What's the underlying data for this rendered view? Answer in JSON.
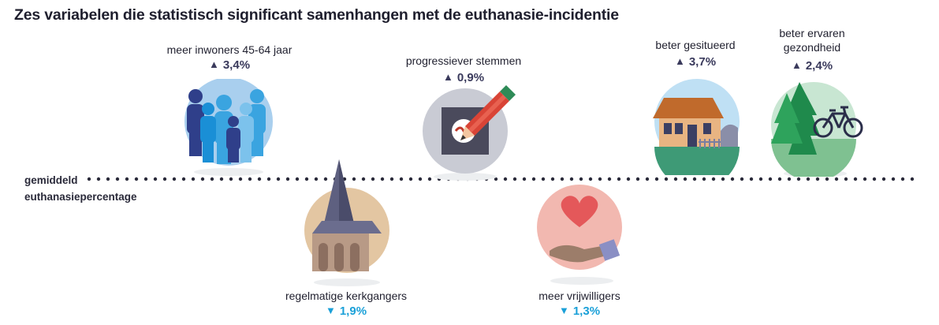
{
  "title": "Zes variabelen die statistisch significant samenhangen met de euthanasie-incidentie",
  "baseline": {
    "line1": "gemiddeld",
    "line2": "euthanasiepercentage"
  },
  "colors": {
    "up": "#3a3a5c",
    "down": "#1aa0d8"
  },
  "variables": [
    {
      "label": "meer inwoners 45-64 jaar",
      "direction": "up",
      "arrow": "▲",
      "value": "3,4%",
      "icon": "people-group-icon"
    },
    {
      "label": "regelmatige kerkgangers",
      "direction": "down",
      "arrow": "▼",
      "value": "1,9%",
      "icon": "church-tower-icon"
    },
    {
      "label": "progressiever stemmen",
      "direction": "up",
      "arrow": "▲",
      "value": "0,9%",
      "icon": "ballot-pencil-icon"
    },
    {
      "label": "meer vrijwilligers",
      "direction": "down",
      "arrow": "▼",
      "value": "1,3%",
      "icon": "heart-hand-icon"
    },
    {
      "label": "beter gesitueerd",
      "direction": "up",
      "arrow": "▲",
      "value": "3,7%",
      "icon": "house-icon"
    },
    {
      "label_line1": "beter ervaren",
      "label_line2": "gezondheid",
      "direction": "up",
      "arrow": "▲",
      "value": "2,4%",
      "icon": "trees-bicycle-icon"
    }
  ]
}
